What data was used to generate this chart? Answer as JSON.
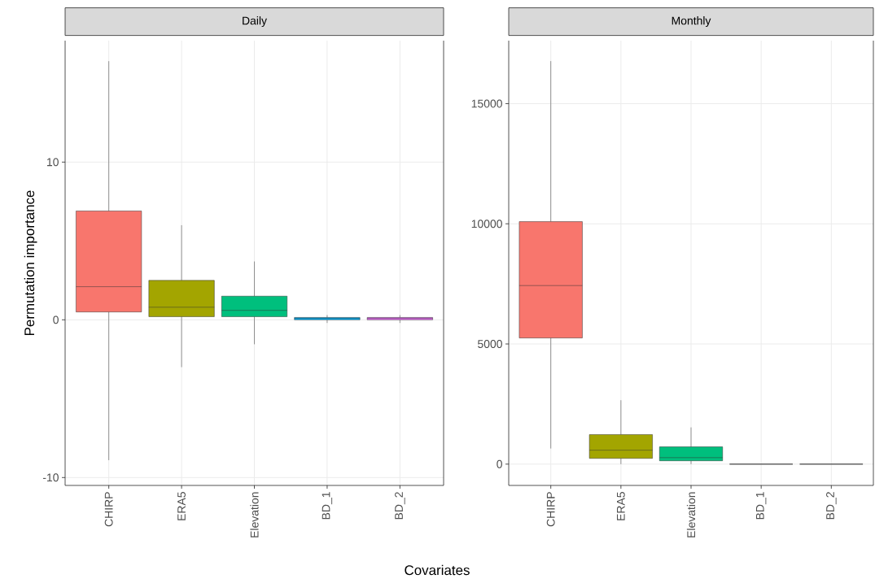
{
  "chart_data": [
    {
      "type": "box",
      "title": "Daily",
      "xlabel": "Covariates",
      "ylabel": "Permutation importance",
      "categories": [
        "CHIRP",
        "ERA5",
        "Elevation",
        "BD_1",
        "BD_2"
      ],
      "colors": [
        "#f8766d",
        "#a3a500",
        "#00bf7d",
        "#00b0f6",
        "#e76bf3"
      ],
      "ylim": [
        -10.5,
        17.7
      ],
      "yticks": [
        -10,
        0,
        10
      ],
      "grid": true,
      "boxes": [
        {
          "low": -8.9,
          "q1": 0.5,
          "median": 2.1,
          "q3": 6.9,
          "high": 16.4
        },
        {
          "low": -3.0,
          "q1": 0.2,
          "median": 0.8,
          "q3": 2.5,
          "high": 6.0
        },
        {
          "low": -1.55,
          "q1": 0.2,
          "median": 0.6,
          "q3": 1.5,
          "high": 3.7
        },
        {
          "low": -0.2,
          "q1": 0.0,
          "median": 0.1,
          "q3": 0.15,
          "high": 0.3
        },
        {
          "low": -0.2,
          "q1": 0.0,
          "median": 0.1,
          "q3": 0.15,
          "high": 0.3
        }
      ]
    },
    {
      "type": "box",
      "title": "Monthly",
      "categories": [
        "CHIRP",
        "ERA5",
        "Elevation",
        "BD_1",
        "BD_2"
      ],
      "colors": [
        "#f8766d",
        "#a3a500",
        "#00bf7d",
        "#333333",
        "#333333"
      ],
      "ylim": [
        -886,
        17620
      ],
      "yticks": [
        0,
        5000,
        10000,
        15000
      ],
      "grid": true,
      "boxes": [
        {
          "low": 650,
          "q1": 5250,
          "median": 7430,
          "q3": 10090,
          "high": 16770
        },
        {
          "low": 0,
          "q1": 240,
          "median": 580,
          "q3": 1230,
          "high": 2660
        },
        {
          "low": 0,
          "q1": 140,
          "median": 270,
          "q3": 720,
          "high": 1530
        },
        {
          "low": 0,
          "q1": 0,
          "median": 0,
          "q3": 0,
          "high": 0
        },
        {
          "low": 0,
          "q1": 0,
          "median": 0,
          "q3": 0,
          "high": 0
        }
      ]
    }
  ]
}
